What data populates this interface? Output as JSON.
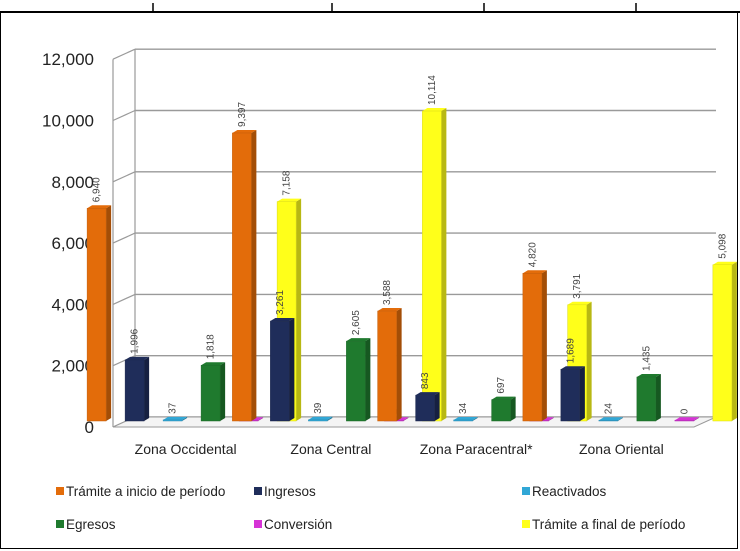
{
  "chart_data": {
    "type": "bar",
    "categories": [
      "Zona Occidental",
      "Zona Central",
      "Zona Paracentral*",
      "Zona Oriental"
    ],
    "series": [
      {
        "name": "Trámite a inicio de período",
        "color": "#e36c0a",
        "values": [
          6940,
          9397,
          3588,
          4820
        ],
        "labels": [
          "6,940",
          "9,397",
          "3,588",
          "4,820"
        ]
      },
      {
        "name": "Ingresos",
        "color": "#1f2d5a",
        "values": [
          1996,
          3261,
          843,
          1689
        ],
        "labels": [
          "1,996",
          "3,261",
          "843",
          "1,689"
        ]
      },
      {
        "name": "Reactivados",
        "color": "#31a7d6",
        "values": [
          37,
          39,
          34,
          24
        ],
        "labels": [
          "37",
          "39",
          "34",
          "24"
        ]
      },
      {
        "name": "Egresos",
        "color": "#1f7a2e",
        "values": [
          1818,
          2605,
          697,
          1435
        ],
        "labels": [
          "1,818",
          "2,605",
          "697",
          "1,435"
        ]
      },
      {
        "name": "Conversión",
        "color": "#d633d6",
        "values": [
          0,
          2,
          3,
          0
        ],
        "labels": [
          "0",
          "2",
          "3",
          "0"
        ]
      },
      {
        "name": "Trámite a final de período",
        "color": "#ffff1a",
        "values": [
          7158,
          10114,
          3791,
          5098
        ],
        "labels": [
          "7,158",
          "10,114",
          "3,791",
          "5,098"
        ]
      }
    ],
    "y_ticks": [
      "0",
      "2,000",
      "4,000",
      "6,000",
      "8,000",
      "10,000",
      "12,000"
    ],
    "ylim": [
      0,
      12000
    ],
    "grid": true,
    "legend_position": "bottom",
    "title": "",
    "xlabel": "",
    "ylabel": ""
  }
}
